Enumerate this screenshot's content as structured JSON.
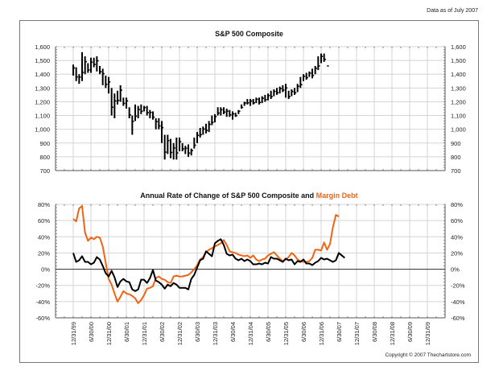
{
  "header": {
    "data_as_of": "Data as of July 2007"
  },
  "footer": {
    "copyright": "Copyright © 2007 Thechartstore.com"
  },
  "colors": {
    "sp500": "#000000",
    "margin_debt": "#f06414",
    "grid": "#d4d4d4"
  },
  "chart_data": [
    {
      "type": "bar",
      "subtype": "high-low-monthly",
      "title": "S&P 500 Composite",
      "ylim": [
        700,
        1600
      ],
      "yticks": [
        "700",
        "800",
        "900",
        "1,000",
        "1,100",
        "1,200",
        "1,300",
        "1,400",
        "1,500",
        "1,600"
      ],
      "ytick_values": [
        700,
        800,
        900,
        1000,
        1100,
        1200,
        1300,
        1400,
        1500,
        1600
      ],
      "grid": true,
      "x_start": "1999-12",
      "series": [
        {
          "name": "S&P 500 monthly range",
          "high": [
            1470,
            1450,
            1400,
            1560,
            1530,
            1480,
            1520,
            1520,
            1530,
            1460,
            1440,
            1390,
            1380,
            1300,
            1260,
            1280,
            1320,
            1230,
            1230,
            1160,
            1100,
            1180,
            1170,
            1180,
            1170,
            1170,
            1140,
            1130,
            1080,
            1080,
            1060,
            960,
            960,
            930,
            900,
            940,
            940,
            900,
            880,
            890,
            860,
            940,
            980,
            1010,
            1020,
            1040,
            1060,
            1100,
            1110,
            1160,
            1160,
            1160,
            1150,
            1140,
            1130,
            1120,
            1140,
            1180,
            1200,
            1220,
            1220,
            1220,
            1230,
            1230,
            1240,
            1250,
            1260,
            1280,
            1290,
            1300,
            1310,
            1320,
            1330,
            1280,
            1290,
            1300,
            1330,
            1380,
            1400,
            1410,
            1420,
            1440,
            1460,
            1530,
            1550,
            1550,
            1460
          ],
          "low": [
            1390,
            1350,
            1330,
            1350,
            1400,
            1410,
            1410,
            1450,
            1420,
            1400,
            1320,
            1300,
            1260,
            1100,
            1080,
            1180,
            1200,
            1170,
            1150,
            1080,
            960,
            1060,
            1080,
            1110,
            1130,
            1100,
            1080,
            1070,
            1000,
            1000,
            900,
            780,
            820,
            790,
            780,
            780,
            840,
            840,
            820,
            800,
            810,
            860,
            900,
            940,
            960,
            970,
            980,
            1030,
            1050,
            1100,
            1100,
            1110,
            1090,
            1090,
            1070,
            1090,
            1110,
            1150,
            1170,
            1180,
            1170,
            1180,
            1190,
            1180,
            1190,
            1200,
            1210,
            1220,
            1240,
            1250,
            1260,
            1270,
            1230,
            1220,
            1240,
            1250,
            1270,
            1300,
            1350,
            1360,
            1380,
            1370,
            1400,
            1430,
            1480,
            1490,
            1460
          ]
        }
      ]
    },
    {
      "type": "line",
      "title": "Annual Rate of Change of S&P 500 Composite and Margin Debt",
      "title_highlight": "Margin Debt",
      "title_prefix": "Annual Rate of Change of S&P 500 Composite and ",
      "ylim": [
        -60,
        80
      ],
      "yticks": [
        "-60%",
        "-40%",
        "-20%",
        "0%",
        "20%",
        "40%",
        "60%",
        "80%"
      ],
      "ytick_values": [
        -60,
        -40,
        -20,
        0,
        20,
        40,
        60,
        80
      ],
      "grid": true,
      "x_start": "1999-12",
      "series": [
        {
          "name": "S&P 500 Composite",
          "color": "#000000",
          "values": [
            20,
            9,
            11,
            16,
            9,
            9,
            6,
            8,
            15,
            12,
            4,
            -5,
            -9,
            -2,
            -10,
            -22,
            -15,
            -12,
            -15,
            -16,
            -25,
            -27,
            -25,
            -13,
            -13,
            -17,
            -11,
            -1,
            -14,
            -16,
            -19,
            -24,
            -19,
            -21,
            -17,
            -19,
            -23,
            -23,
            -23,
            -25,
            -12,
            -7,
            2,
            11,
            13,
            22,
            19,
            16,
            32,
            35,
            37,
            30,
            19,
            17,
            18,
            13,
            11,
            13,
            10,
            12,
            10,
            6,
            6,
            7,
            6,
            8,
            7,
            15,
            13,
            13,
            11,
            9,
            13,
            11,
            12,
            6,
            10,
            9,
            12,
            7,
            7,
            5,
            8,
            10,
            14,
            12,
            13,
            11,
            9,
            11,
            20,
            17,
            14
          ],
          "x_offset_months": 0
        },
        {
          "name": "Margin Debt",
          "color": "#f06414",
          "values": [
            62,
            59,
            75,
            78,
            45,
            35,
            39,
            37,
            40,
            39,
            28,
            8,
            -12,
            -19,
            -30,
            -40,
            -34,
            -27,
            -30,
            -31,
            -33,
            -36,
            -42,
            -38,
            -32,
            -24,
            -23,
            -21,
            -11,
            -9,
            -12,
            -13,
            -16,
            -17,
            -9,
            -8,
            -9,
            -9,
            -8,
            -7,
            -4,
            0,
            5,
            12,
            15,
            21,
            24,
            26,
            28,
            30,
            32,
            36,
            30,
            22,
            21,
            20,
            18,
            17,
            16,
            17,
            14,
            17,
            12,
            10,
            12,
            13,
            17,
            19,
            21,
            17,
            13,
            10,
            12,
            15,
            20,
            17,
            12,
            10,
            9,
            9,
            10,
            14,
            24,
            24,
            23,
            33,
            24,
            31,
            52,
            67,
            65
          ],
          "x_offset_months": 0
        }
      ],
      "x_tick_labels": [
        "12/31/99",
        "6/30/00",
        "12/31/00",
        "6/30/01",
        "12/31/01",
        "6/30/02",
        "12/31/02",
        "6/30/03",
        "12/31/03",
        "6/30/04",
        "12/31/04",
        "6/30/05",
        "12/31/05",
        "6/30/06",
        "12/31/06",
        "6/30/07",
        "12/31/07",
        "6/30/08",
        "12/31/08",
        "6/30/09",
        "12/31/09"
      ],
      "xlabel": "",
      "ylabel": ""
    }
  ]
}
